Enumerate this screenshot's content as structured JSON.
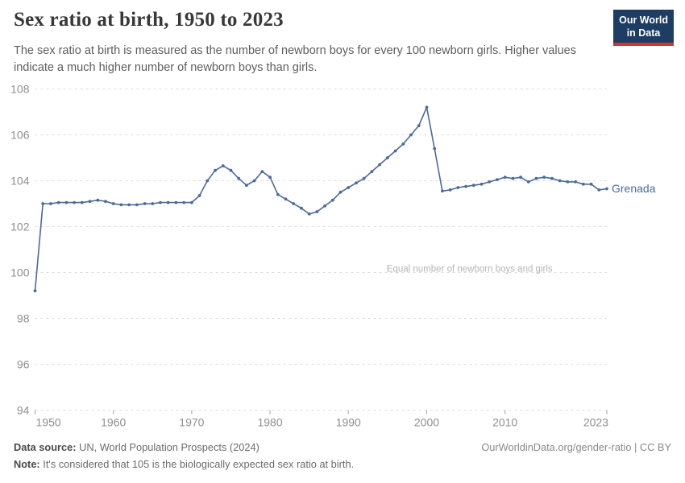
{
  "header": {
    "title": "Sex ratio at birth, 1950 to 2023",
    "subtitle": "The sex ratio at birth is measured as the number of newborn boys for every 100 newborn girls. Higher values indicate a much higher number of newborn boys than girls."
  },
  "logo": {
    "line1": "Our World",
    "line2": "in Data",
    "bg_color": "#1d3d63",
    "stripe_color": "#d0342c"
  },
  "footer": {
    "source_label": "Data source:",
    "source_value": "UN, World Population Prospects (2024)",
    "attribution": "OurWorldinData.org/gender-ratio | CC BY",
    "note_label": "Note:",
    "note_value": "It's considered that 105 is the biologically expected sex ratio at birth."
  },
  "chart_data": {
    "type": "line",
    "title": "Sex ratio at birth, 1950 to 2023",
    "xlabel": "",
    "ylabel": "",
    "xlim": [
      1950,
      2023
    ],
    "ylim": [
      94,
      108
    ],
    "x_ticks": [
      1950,
      1960,
      1970,
      1980,
      1990,
      2000,
      2010,
      2023
    ],
    "y_ticks": [
      94,
      96,
      98,
      100,
      102,
      104,
      106,
      108
    ],
    "grid": true,
    "grid_color": "#dcdcdc",
    "axis_label_color": "#8f8f8f",
    "legend_position": "end-of-line",
    "annotation": {
      "text": "Equal number of newborn boys and girls",
      "y": 100,
      "x_frac": 0.76
    },
    "x": [
      1950,
      1951,
      1952,
      1953,
      1954,
      1955,
      1956,
      1957,
      1958,
      1959,
      1960,
      1961,
      1962,
      1963,
      1964,
      1965,
      1966,
      1967,
      1968,
      1969,
      1970,
      1971,
      1972,
      1973,
      1974,
      1975,
      1976,
      1977,
      1978,
      1979,
      1980,
      1981,
      1982,
      1983,
      1984,
      1985,
      1986,
      1987,
      1988,
      1989,
      1990,
      1991,
      1992,
      1993,
      1994,
      1995,
      1996,
      1997,
      1998,
      1999,
      2000,
      2001,
      2002,
      2003,
      2004,
      2005,
      2006,
      2007,
      2008,
      2009,
      2010,
      2011,
      2012,
      2013,
      2014,
      2015,
      2016,
      2017,
      2018,
      2019,
      2020,
      2021,
      2022,
      2023
    ],
    "series": [
      {
        "name": "Grenada",
        "color": "#4c6a9c",
        "values": [
          99.2,
          103.0,
          103.0,
          103.05,
          103.05,
          103.05,
          103.05,
          103.1,
          103.15,
          103.1,
          103.0,
          102.95,
          102.95,
          102.95,
          103.0,
          103.0,
          103.05,
          103.05,
          103.05,
          103.05,
          103.05,
          103.35,
          104.0,
          104.45,
          104.65,
          104.45,
          104.1,
          103.8,
          104.0,
          104.4,
          104.15,
          103.4,
          103.2,
          103.0,
          102.8,
          102.55,
          102.65,
          102.9,
          103.15,
          103.5,
          103.7,
          103.9,
          104.1,
          104.4,
          104.7,
          105.0,
          105.3,
          105.6,
          106.0,
          106.4,
          107.2,
          105.4,
          103.55,
          103.6,
          103.7,
          103.75,
          103.8,
          103.85,
          103.95,
          104.05,
          104.15,
          104.1,
          104.15,
          103.95,
          104.1,
          104.15,
          104.1,
          104.0,
          103.95,
          103.95,
          103.85,
          103.85,
          103.6,
          103.65
        ]
      }
    ]
  }
}
